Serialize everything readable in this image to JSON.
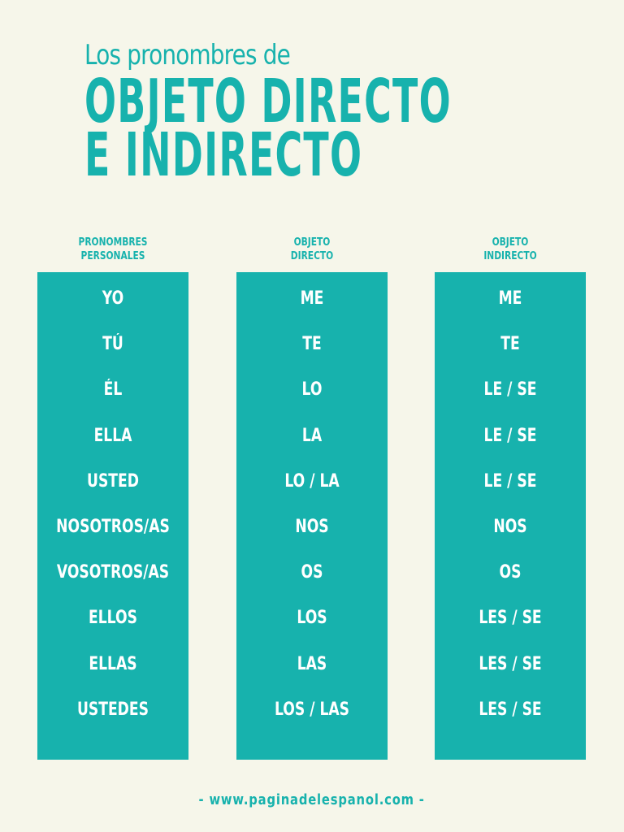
{
  "title": {
    "line1": "Los pronombres de",
    "line2": "OBJETO DIRECTO",
    "line3": "E INDIRECTO"
  },
  "columns": [
    {
      "header": [
        "PRONOMBRES",
        "PERSONALES"
      ],
      "items": [
        "YO",
        "TÚ",
        "ÉL",
        "ELLA",
        "USTED",
        "NOSOTROS/AS",
        "VOSOTROS/AS",
        "ELLOS",
        "ELLAS",
        "USTEDES"
      ]
    },
    {
      "header": [
        "OBJETO",
        "DIRECTO"
      ],
      "items": [
        "ME",
        "TE",
        "LO",
        "LA",
        "LO / LA",
        "NOS",
        "OS",
        "LOS",
        "LAS",
        "LOS / LAS"
      ]
    },
    {
      "header": [
        "OBJETO",
        "INDIRECTO"
      ],
      "items": [
        "ME",
        "TE",
        "LE / SE",
        "LE / SE",
        "LE / SE",
        "NOS",
        "OS",
        "LES / SE",
        "LES / SE",
        "LES / SE"
      ]
    }
  ],
  "footer": "- www.paginadelespanol.com -",
  "colors": {
    "accent": "#17b2ad",
    "background": "#f6f6ea",
    "text_on_accent": "#ffffff"
  }
}
